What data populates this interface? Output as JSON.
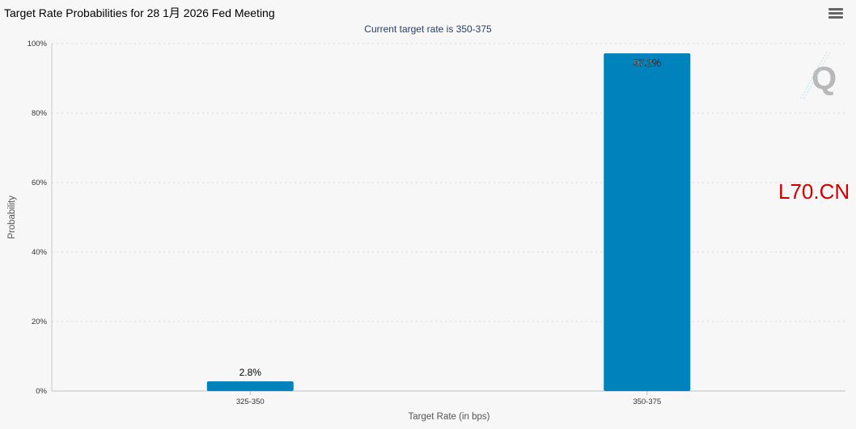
{
  "header": {
    "title": "Target Rate Probabilities for 28 1月 2026 Fed Meeting",
    "menu_icon": "hamburger-menu-icon"
  },
  "watermark_text": "L70.CN",
  "logo_icon": "q-logo-icon",
  "colors": {
    "bar": "#0083bd",
    "watermark": "#d00000",
    "subtitle": "#2a3e63"
  },
  "chart_data": {
    "type": "bar",
    "title": "",
    "subtitle": "Current target rate is 350-375",
    "xlabel": "Target Rate (in bps)",
    "ylabel": "Probability",
    "categories": [
      "325-350",
      "350-375"
    ],
    "values": [
      2.8,
      97.2
    ],
    "data_labels": [
      "2.8%",
      "97.2%"
    ],
    "ylim": [
      0,
      100
    ],
    "yticks": [
      0,
      20,
      40,
      60,
      80,
      100
    ],
    "ytick_labels": [
      "0%",
      "20%",
      "40%",
      "60%",
      "80%",
      "100%"
    ],
    "grid": true,
    "legend": "none"
  }
}
